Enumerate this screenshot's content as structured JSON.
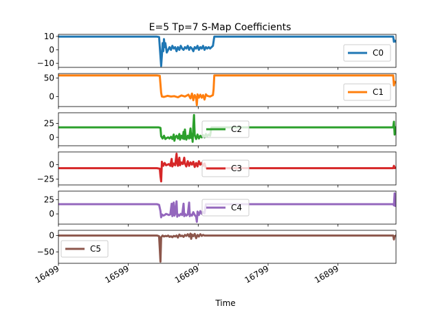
{
  "chart_data": {
    "type": "line",
    "title": "E=5 Tp=7  S-Map Coefficients",
    "xlabel": "Time",
    "xlim": [
      16499,
      16982
    ],
    "x_ticks": [
      16499,
      16599,
      16699,
      16799,
      16899
    ],
    "panels": [
      {
        "name": "C0",
        "color": "#1f77b4",
        "ylim": [
          -13,
          11.5
        ],
        "y_ticks": [
          10,
          0,
          -10
        ],
        "legend": "right",
        "points": [
          [
            16499,
            9.8
          ],
          [
            16640,
            9.8
          ],
          [
            16643,
            9.5
          ],
          [
            16645,
            -5
          ],
          [
            16646,
            -12
          ],
          [
            16647,
            -4
          ],
          [
            16648,
            5
          ],
          [
            16649,
            -1
          ],
          [
            16650,
            8
          ],
          [
            16651,
            2
          ],
          [
            16652,
            5
          ],
          [
            16654,
            -2
          ],
          [
            16656,
            0
          ],
          [
            16658,
            2
          ],
          [
            16660,
            0
          ],
          [
            16662,
            3
          ],
          [
            16664,
            1
          ],
          [
            16666,
            2
          ],
          [
            16668,
            -1
          ],
          [
            16670,
            2
          ],
          [
            16672,
            0
          ],
          [
            16674,
            3
          ],
          [
            16676,
            1
          ],
          [
            16678,
            0
          ],
          [
            16680,
            2
          ],
          [
            16682,
            1
          ],
          [
            16684,
            3
          ],
          [
            16686,
            0
          ],
          [
            16688,
            2
          ],
          [
            16690,
            1
          ],
          [
            16692,
            -1
          ],
          [
            16694,
            2
          ],
          [
            16696,
            1
          ],
          [
            16698,
            3
          ],
          [
            16700,
            0
          ],
          [
            16702,
            2
          ],
          [
            16704,
            1
          ],
          [
            16706,
            3
          ],
          [
            16708,
            0
          ],
          [
            16710,
            2
          ],
          [
            16712,
            1
          ],
          [
            16714,
            2
          ],
          [
            16716,
            1
          ],
          [
            16718,
            2
          ],
          [
            16720,
            3
          ],
          [
            16722,
            9.8
          ],
          [
            16978,
            9.8
          ],
          [
            16979,
            6
          ],
          [
            16980,
            7
          ],
          [
            16982,
            6
          ]
        ]
      },
      {
        "name": "C1",
        "color": "#ff7f0e",
        "ylim": [
          -27,
          62
        ],
        "y_ticks": [
          50,
          0
        ],
        "legend": "right",
        "points": [
          [
            16499,
            57
          ],
          [
            16640,
            57
          ],
          [
            16644,
            56
          ],
          [
            16646,
            10
          ],
          [
            16647,
            0
          ],
          [
            16650,
            -1
          ],
          [
            16655,
            2
          ],
          [
            16660,
            0
          ],
          [
            16665,
            1
          ],
          [
            16670,
            -2
          ],
          [
            16675,
            3
          ],
          [
            16680,
            0
          ],
          [
            16685,
            5
          ],
          [
            16688,
            -5
          ],
          [
            16690,
            8
          ],
          [
            16692,
            -10
          ],
          [
            16694,
            4
          ],
          [
            16696,
            -4
          ],
          [
            16697,
            -23
          ],
          [
            16698,
            6
          ],
          [
            16700,
            -3
          ],
          [
            16702,
            5
          ],
          [
            16704,
            -3
          ],
          [
            16706,
            4
          ],
          [
            16708,
            -8
          ],
          [
            16710,
            6
          ],
          [
            16712,
            2
          ],
          [
            16716,
            0
          ],
          [
            16720,
            4
          ],
          [
            16721,
            20
          ],
          [
            16722,
            57
          ],
          [
            16978,
            57
          ],
          [
            16979,
            30
          ],
          [
            16980,
            40
          ],
          [
            16982,
            38
          ]
        ]
      },
      {
        "name": "C2",
        "color": "#2ca02c",
        "ylim": [
          -15,
          44
        ],
        "y_ticks": [
          25,
          0
        ],
        "legend": "center",
        "points": [
          [
            16499,
            18
          ],
          [
            16642,
            18
          ],
          [
            16645,
            17
          ],
          [
            16646,
            2
          ],
          [
            16648,
            -2
          ],
          [
            16650,
            3
          ],
          [
            16652,
            -3
          ],
          [
            16654,
            -1
          ],
          [
            16656,
            0
          ],
          [
            16658,
            -2
          ],
          [
            16660,
            1
          ],
          [
            16662,
            -3
          ],
          [
            16664,
            5
          ],
          [
            16665,
            -6
          ],
          [
            16666,
            0
          ],
          [
            16668,
            3
          ],
          [
            16670,
            -2
          ],
          [
            16672,
            6
          ],
          [
            16673,
            -4
          ],
          [
            16675,
            3
          ],
          [
            16677,
            -2
          ],
          [
            16678,
            10
          ],
          [
            16679,
            -3
          ],
          [
            16680,
            14
          ],
          [
            16681,
            2
          ],
          [
            16682,
            -4
          ],
          [
            16684,
            3
          ],
          [
            16686,
            -2
          ],
          [
            16688,
            16
          ],
          [
            16689,
            -1
          ],
          [
            16690,
            6
          ],
          [
            16691,
            -8
          ],
          [
            16692,
            20
          ],
          [
            16693,
            40
          ],
          [
            16694,
            4
          ],
          [
            16696,
            -3
          ],
          [
            16698,
            5
          ],
          [
            16700,
            -2
          ],
          [
            16702,
            3
          ],
          [
            16704,
            0
          ],
          [
            16706,
            4
          ],
          [
            16708,
            0
          ],
          [
            16710,
            6
          ],
          [
            16712,
            2
          ],
          [
            16714,
            5
          ],
          [
            16716,
            3
          ],
          [
            16718,
            18
          ],
          [
            16978,
            18
          ],
          [
            16979,
            28
          ],
          [
            16980,
            5
          ],
          [
            16982,
            18
          ]
        ]
      },
      {
        "name": "C3",
        "color": "#d62728",
        "ylim": [
          -35,
          22
        ],
        "y_ticks": [
          0,
          -25
        ],
        "legend": "center",
        "points": [
          [
            16499,
            -6
          ],
          [
            16640,
            -6
          ],
          [
            16644,
            -7
          ],
          [
            16645,
            -20
          ],
          [
            16646,
            -29
          ],
          [
            16647,
            5
          ],
          [
            16649,
            -2
          ],
          [
            16651,
            3
          ],
          [
            16653,
            -1
          ],
          [
            16655,
            0
          ],
          [
            16657,
            1
          ],
          [
            16659,
            -2
          ],
          [
            16661,
            10
          ],
          [
            16662,
            -3
          ],
          [
            16664,
            2
          ],
          [
            16666,
            -1
          ],
          [
            16668,
            19
          ],
          [
            16669,
            3
          ],
          [
            16670,
            -2
          ],
          [
            16672,
            12
          ],
          [
            16673,
            -1
          ],
          [
            16675,
            4
          ],
          [
            16677,
            1
          ],
          [
            16679,
            12
          ],
          [
            16680,
            2
          ],
          [
            16682,
            -3
          ],
          [
            16684,
            6
          ],
          [
            16686,
            -2
          ],
          [
            16688,
            4
          ],
          [
            16690,
            0
          ],
          [
            16692,
            5
          ],
          [
            16694,
            -4
          ],
          [
            16696,
            3
          ],
          [
            16698,
            -3
          ],
          [
            16700,
            6
          ],
          [
            16702,
            0
          ],
          [
            16704,
            3
          ],
          [
            16706,
            -2
          ],
          [
            16708,
            2
          ],
          [
            16710,
            -6
          ],
          [
            16712,
            -6
          ],
          [
            16978,
            -6
          ],
          [
            16979,
            -2
          ],
          [
            16980,
            -6
          ],
          [
            16982,
            -5
          ]
        ]
      },
      {
        "name": "C4",
        "color": "#9467bd",
        "ylim": [
          -18,
          40
        ],
        "y_ticks": [
          25,
          0
        ],
        "legend": "center",
        "points": [
          [
            16499,
            17
          ],
          [
            16640,
            17
          ],
          [
            16643,
            16
          ],
          [
            16645,
            5
          ],
          [
            16646,
            -6
          ],
          [
            16647,
            -1
          ],
          [
            16649,
            -3
          ],
          [
            16651,
            -2
          ],
          [
            16653,
            0
          ],
          [
            16655,
            -1
          ],
          [
            16657,
            -2
          ],
          [
            16659,
            -1
          ],
          [
            16661,
            18
          ],
          [
            16662,
            -4
          ],
          [
            16664,
            20
          ],
          [
            16665,
            -3
          ],
          [
            16666,
            0
          ],
          [
            16668,
            22
          ],
          [
            16669,
            -5
          ],
          [
            16670,
            -1
          ],
          [
            16672,
            -3
          ],
          [
            16674,
            0
          ],
          [
            16676,
            -2
          ],
          [
            16678,
            18
          ],
          [
            16679,
            -4
          ],
          [
            16680,
            0
          ],
          [
            16682,
            -3
          ],
          [
            16684,
            -1
          ],
          [
            16686,
            20
          ],
          [
            16687,
            -4
          ],
          [
            16688,
            -1
          ],
          [
            16690,
            -3
          ],
          [
            16692,
            3
          ],
          [
            16694,
            -2
          ],
          [
            16696,
            -5
          ],
          [
            16697,
            -14
          ],
          [
            16698,
            4
          ],
          [
            16700,
            -2
          ],
          [
            16702,
            5
          ],
          [
            16704,
            0
          ],
          [
            16706,
            3
          ],
          [
            16708,
            1
          ],
          [
            16710,
            17
          ],
          [
            16978,
            17
          ],
          [
            16979,
            15
          ],
          [
            16980,
            36
          ],
          [
            16981,
            14
          ],
          [
            16982,
            17
          ]
        ]
      },
      {
        "name": "C5",
        "color": "#8c564b",
        "ylim": [
          -85,
          16
        ],
        "y_ticks": [
          0,
          -50
        ],
        "legend": "left",
        "points": [
          [
            16499,
            0
          ],
          [
            16640,
            0
          ],
          [
            16643,
            -2
          ],
          [
            16644,
            -40
          ],
          [
            16645,
            -80
          ],
          [
            16646,
            -5
          ],
          [
            16648,
            0
          ],
          [
            16650,
            -3
          ],
          [
            16652,
            -1
          ],
          [
            16654,
            -2
          ],
          [
            16656,
            0
          ],
          [
            16658,
            -4
          ],
          [
            16660,
            -2
          ],
          [
            16662,
            -5
          ],
          [
            16664,
            -1
          ],
          [
            16666,
            -3
          ],
          [
            16668,
            0
          ],
          [
            16670,
            -6
          ],
          [
            16672,
            3
          ],
          [
            16674,
            -2
          ],
          [
            16676,
            0
          ],
          [
            16678,
            -4
          ],
          [
            16680,
            2
          ],
          [
            16682,
            -1
          ],
          [
            16684,
            4
          ],
          [
            16686,
            -3
          ],
          [
            16688,
            6
          ],
          [
            16689,
            -10
          ],
          [
            16690,
            3
          ],
          [
            16692,
            -2
          ],
          [
            16694,
            5
          ],
          [
            16696,
            -8
          ],
          [
            16698,
            2
          ],
          [
            16700,
            -3
          ],
          [
            16702,
            4
          ],
          [
            16704,
            -1
          ],
          [
            16706,
            2
          ],
          [
            16708,
            0
          ],
          [
            16710,
            0
          ],
          [
            16978,
            0
          ],
          [
            16979,
            -12
          ],
          [
            16980,
            -2
          ],
          [
            16982,
            0
          ]
        ]
      }
    ]
  }
}
